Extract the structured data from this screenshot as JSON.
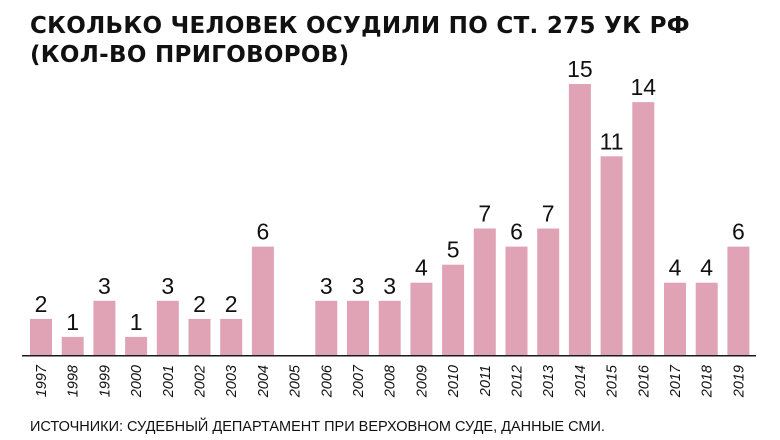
{
  "chart_data": {
    "type": "bar",
    "title_lines": [
      "СКОЛЬКО ЧЕЛОВЕК ОСУДИЛИ ПО СТ. 275 УК РФ",
      "(КОЛ-ВО ПРИГОВОРОВ)"
    ],
    "categories": [
      "1997",
      "1998",
      "1999",
      "2000",
      "2001",
      "2002",
      "2003",
      "2004",
      "2005",
      "2006",
      "2007",
      "2008",
      "2009",
      "2010",
      "2011",
      "2012",
      "2013",
      "2014",
      "2015",
      "2016",
      "2017",
      "2018",
      "2019"
    ],
    "values": [
      2,
      1,
      3,
      1,
      3,
      2,
      2,
      6,
      0,
      3,
      3,
      3,
      4,
      5,
      7,
      6,
      7,
      15,
      11,
      14,
      4,
      4,
      6
    ],
    "value_labels": [
      "2",
      "1",
      "3",
      "1",
      "3",
      "2",
      "2",
      "6",
      "",
      "3",
      "3",
      "3",
      "4",
      "5",
      "7",
      "6",
      "7",
      "15",
      "11",
      "14",
      "4",
      "4",
      "6"
    ],
    "ylim": [
      0,
      15
    ],
    "bar_color": "#e0a3b6",
    "grid": false,
    "legend": "none",
    "source": "ИСТОЧНИКИ: СУДЕБНЫЙ ДЕПАРТАМЕНТ ПРИ ВЕРХОВНОМ СУДЕ, ДАННЫЕ СМИ."
  }
}
